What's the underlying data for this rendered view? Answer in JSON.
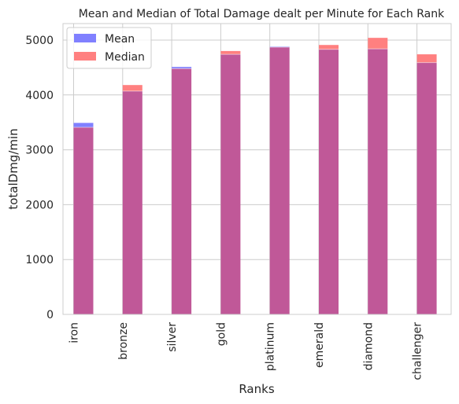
{
  "chart_data": {
    "type": "bar",
    "title": "Mean and Median of Total Damage dealt per Minute for Each Rank",
    "xlabel": "Ranks",
    "ylabel": "totalDmg/min",
    "categories": [
      "iron",
      "bronze",
      "silver",
      "gold",
      "platinum",
      "emerald",
      "diamond",
      "challenger"
    ],
    "series": [
      {
        "name": "Mean",
        "color": "#8080ff",
        "values": [
          3490,
          4070,
          4510,
          4740,
          4880,
          4830,
          4840,
          4590
        ]
      },
      {
        "name": "Median",
        "color": "#ff8080",
        "values": [
          3410,
          4180,
          4480,
          4800,
          4870,
          4910,
          5040,
          4740
        ]
      }
    ],
    "overlap_color": "#c05898",
    "ylim": [
      0,
      5300
    ],
    "yticks": [
      0,
      1000,
      2000,
      3000,
      4000,
      5000
    ],
    "grid": true,
    "legend_position": "top-left"
  }
}
